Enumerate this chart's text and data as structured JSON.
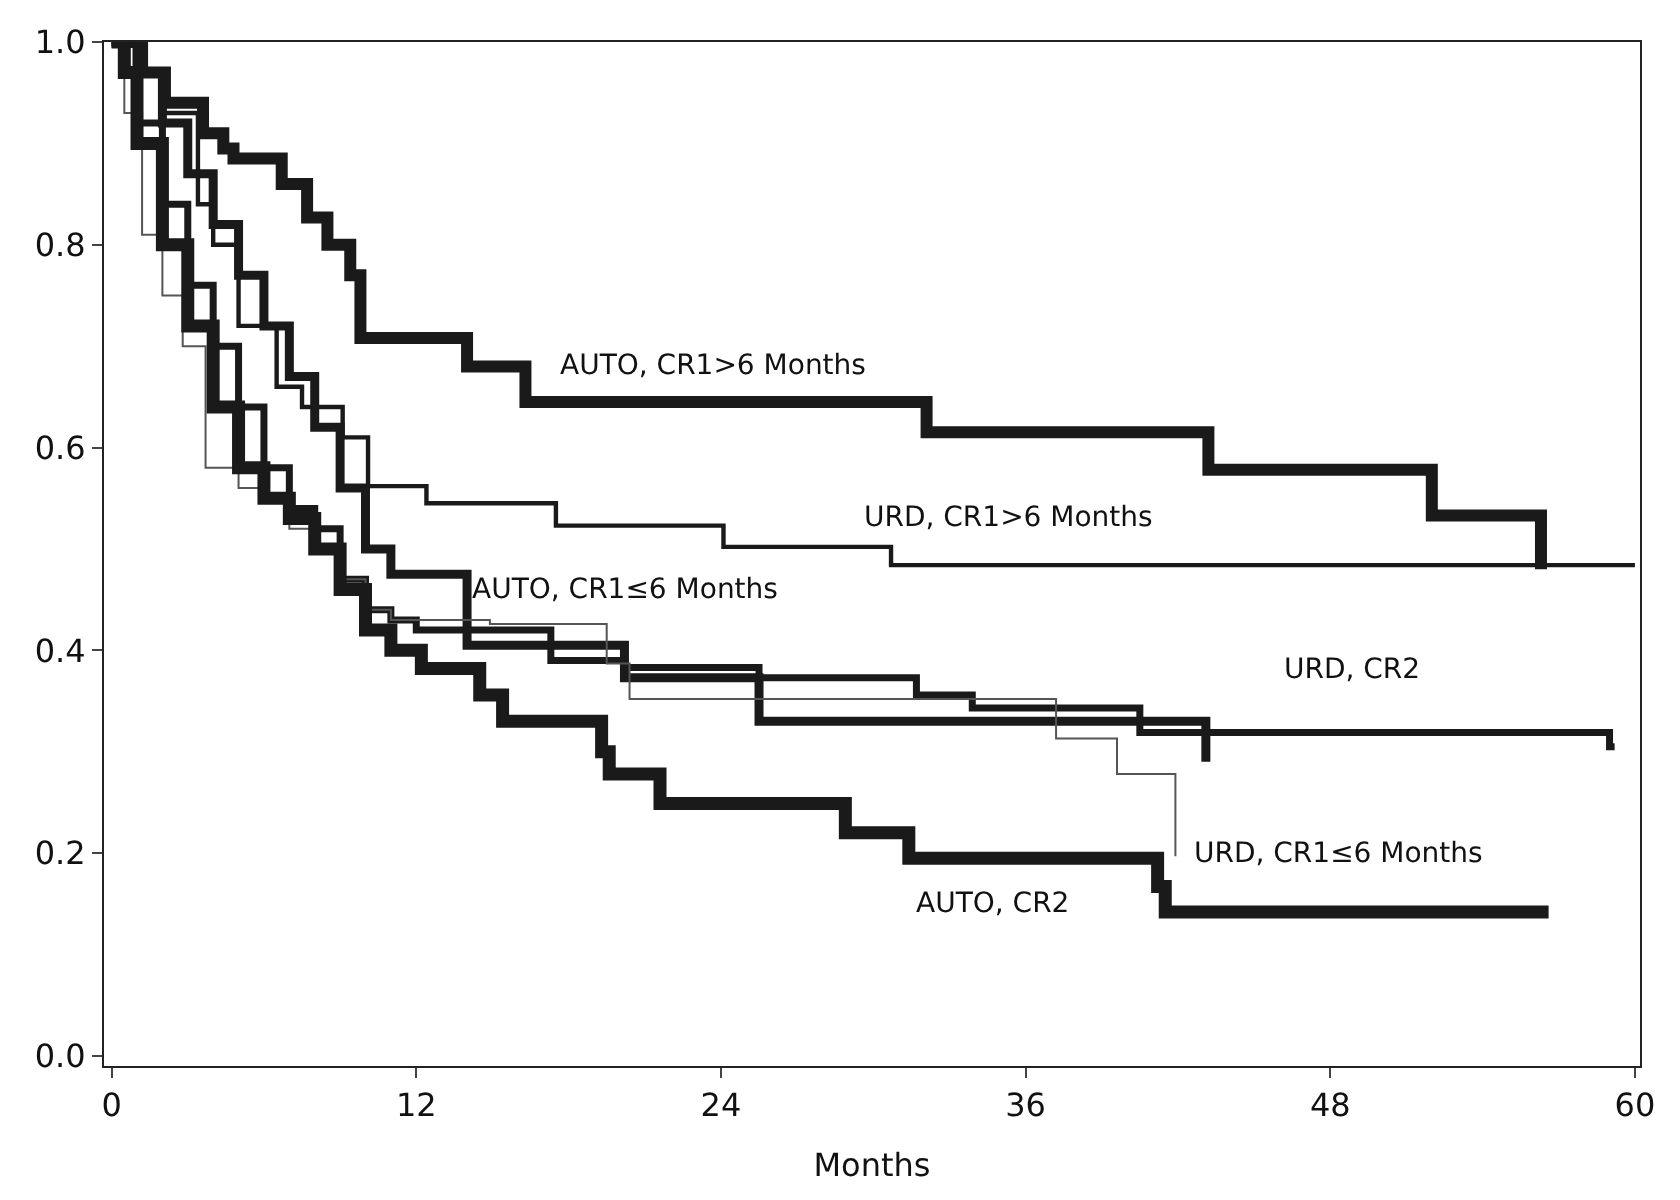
{
  "chart_data": {
    "type": "step",
    "xlabel": "Months",
    "xlim": [
      -0.3,
      60.2
    ],
    "ylim": [
      -0.01,
      1.0
    ],
    "xticks": [
      0,
      12,
      24,
      36,
      48,
      60
    ],
    "yticks": [
      {
        "value": 0,
        "label": "0.0"
      },
      {
        "value": 0.2,
        "label": "0.2"
      },
      {
        "value": 0.4,
        "label": "0.4"
      },
      {
        "value": 0.6,
        "label": "0.6"
      },
      {
        "value": 0.8,
        "label": "0.8"
      },
      {
        "value": 1,
        "label": "1.0"
      }
    ],
    "marker": "none",
    "line_style": "solid",
    "series": [
      {
        "name": "AUTO, CR1>6 Months",
        "color": "#1a1a1a",
        "x": [
          0,
          1.2,
          2.1,
          3.6,
          4.4,
          4.8,
          6.7,
          7.7,
          8.5,
          9.4,
          9.8,
          14.0,
          14.4,
          16.3,
          32.1,
          43.2,
          52.0,
          56.3
        ],
        "values": [
          1,
          0.97,
          0.94,
          0.91,
          0.895,
          0.885,
          0.86,
          0.827,
          0.8,
          0.77,
          0.708,
          0.68,
          0.68,
          0.645,
          0.615,
          0.578,
          0.533,
          0.48
        ]
      },
      {
        "name": "URD, CR1>6 Months",
        "color": "#1a1a1a",
        "x": [
          0,
          1,
          2,
          3.4,
          4,
          5,
          6.5,
          7.5,
          9.1,
          10.1,
          12.4,
          17.5,
          24.1,
          30.7,
          60
        ],
        "values": [
          1,
          0.97,
          0.93,
          0.84,
          0.8,
          0.72,
          0.66,
          0.64,
          0.61,
          0.562,
          0.545,
          0.523,
          0.502,
          0.484,
          0.484
        ]
      },
      {
        "name": "AUTO, CR1≤6 Months",
        "color": "#1a1a1a",
        "x": [
          0,
          1,
          2,
          3,
          4,
          5,
          6,
          7,
          8,
          9,
          10,
          11,
          14,
          20.2,
          25.5,
          43.1,
          43.1
        ],
        "values": [
          1,
          0.97,
          0.92,
          0.87,
          0.82,
          0.77,
          0.72,
          0.67,
          0.62,
          0.56,
          0.5,
          0.475,
          0.405,
          0.373,
          0.33,
          0.29,
          0.29
        ]
      },
      {
        "name": "URD, CR2",
        "color": "#1a1a1a",
        "x": [
          0,
          0.5,
          1,
          2,
          3,
          4,
          5,
          6,
          7,
          8,
          9,
          10,
          11,
          12,
          17.3,
          20.2,
          25.5,
          31.7,
          33.9,
          40.5,
          59,
          59.2
        ],
        "values": [
          1,
          0.97,
          0.92,
          0.84,
          0.76,
          0.7,
          0.64,
          0.58,
          0.54,
          0.52,
          0.47,
          0.44,
          0.43,
          0.42,
          0.39,
          0.383,
          0.373,
          0.356,
          0.343,
          0.319,
          0.305,
          0.305
        ]
      },
      {
        "name": "URD, CR1≤6 Months",
        "color": "#555555",
        "x": [
          0,
          0.5,
          1.2,
          2,
          2.8,
          3.7,
          5,
          6,
          7,
          8,
          9,
          10,
          11,
          14.9,
          19.5,
          20.4,
          37.2,
          39.6,
          41.9,
          41.9
        ],
        "values": [
          1,
          0.93,
          0.81,
          0.75,
          0.7,
          0.58,
          0.56,
          0.55,
          0.52,
          0.5,
          0.47,
          0.44,
          0.43,
          0.426,
          0.387,
          0.352,
          0.313,
          0.278,
          0.235,
          0.197
        ]
      },
      {
        "name": "AUTO, CR2",
        "color": "#1a1a1a",
        "x": [
          0,
          0.5,
          1,
          2,
          3,
          4,
          5,
          6,
          7,
          8,
          9,
          10,
          11,
          12.2,
          14.5,
          15.4,
          19.3,
          19.6,
          21.6,
          28.9,
          31.4,
          41.2,
          41.5,
          56.6
        ],
        "values": [
          1,
          0.97,
          0.9,
          0.8,
          0.72,
          0.64,
          0.58,
          0.55,
          0.53,
          0.5,
          0.46,
          0.42,
          0.4,
          0.382,
          0.356,
          0.33,
          0.3,
          0.278,
          0.249,
          0.22,
          0.195,
          0.167,
          0.142,
          0.142
        ]
      }
    ]
  }
}
